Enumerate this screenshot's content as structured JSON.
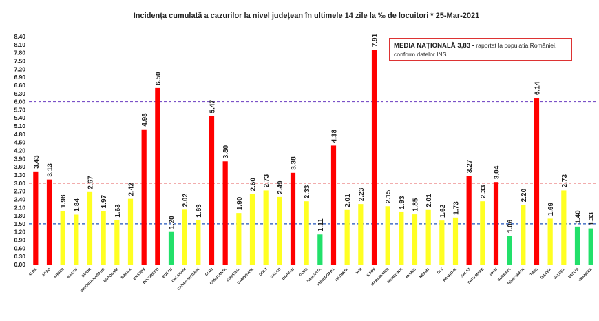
{
  "chart_data": {
    "type": "bar",
    "title": "Incidența cumulată a cazurilor la nivel județean în ultimele 14 zile   la ‰ de locuitori  *  25-Mar-2021",
    "xlabel": "",
    "ylabel": "",
    "ylim": [
      0,
      8.4
    ],
    "yticks": [
      "0.00",
      "0.30",
      "0.60",
      "0.90",
      "1.20",
      "1.50",
      "1.80",
      "2.10",
      "2.40",
      "2.70",
      "3.00",
      "3.30",
      "3.60",
      "3.90",
      "4.20",
      "4.50",
      "4.80",
      "5.10",
      "5.40",
      "5.70",
      "6.00",
      "6.30",
      "6.60",
      "6.90",
      "7.20",
      "7.50",
      "7.80",
      "8.10",
      "8.40"
    ],
    "categories": [
      "ALBA",
      "ARAD",
      "ARGES",
      "BACAU",
      "BIHOR",
      "BISTRITA NASAUD",
      "BOTOSANI",
      "BRAILA",
      "BRASOV",
      "BUCURESTI",
      "BUZAU",
      "CALARASI",
      "CARAS-SEVERIN",
      "CLUJ",
      "CONSTANTA",
      "COVASNA",
      "DAMBOVITA",
      "DOLJ",
      "GALATI",
      "GIURGIU",
      "GORJ",
      "HARGHITA",
      "HUNEDOARA",
      "IALOMITA",
      "IASI",
      "ILFOV",
      "MARAMURES",
      "MEHEDINTI",
      "MURES",
      "NEAMT",
      "OLT",
      "PRAHOVA",
      "SALAJ",
      "SATU MARE",
      "SIBIU",
      "SUCEAVA",
      "TELEORMAN",
      "TIMIS",
      "TULCEA",
      "VALCEA",
      "VASLUI",
      "VRANCEA"
    ],
    "values": [
      3.43,
      3.13,
      1.98,
      1.84,
      2.67,
      1.97,
      1.63,
      2.42,
      4.98,
      6.5,
      1.2,
      2.02,
      1.63,
      5.47,
      3.8,
      1.9,
      2.6,
      2.73,
      2.49,
      3.38,
      2.33,
      1.11,
      4.38,
      2.01,
      2.23,
      7.91,
      2.15,
      1.93,
      1.85,
      2.01,
      1.62,
      1.73,
      3.27,
      2.33,
      3.04,
      1.06,
      2.2,
      6.14,
      1.69,
      2.73,
      1.4,
      1.33
    ],
    "value_labels": [
      "3.43",
      "3.13",
      "1.98",
      "1.84",
      "2.67",
      "1.97",
      "1.63",
      "2.42",
      "4.98",
      "6.50",
      "1.20",
      "2.02",
      "1.63",
      "5.47",
      "3.80",
      "1.90",
      "2.60",
      "2.73",
      "2.49",
      "3.38",
      "2.33",
      "1.11",
      "4.38",
      "2.01",
      "2.23",
      "7.91",
      "2.15",
      "1.93",
      "1.85",
      "2.01",
      "1.62",
      "1.73",
      "3.27",
      "2.33",
      "3.04",
      "1.06",
      "2.20",
      "6.14",
      "1.69",
      "2.73",
      "1.40",
      "1.33"
    ],
    "reference_lines": [
      {
        "value": 6.0,
        "color": "#7b52c8"
      },
      {
        "value": 3.0,
        "color": "#dd2222"
      },
      {
        "value": 1.5,
        "color": "#2255bb"
      }
    ],
    "color_thresholds": [
      {
        "below": 1.5,
        "color": "#22e06a"
      },
      {
        "below": 3.0,
        "color": "#ffff22"
      },
      {
        "below": 99,
        "color": "#ff0000"
      }
    ],
    "grid": false,
    "annotation": {
      "bold": "MEDIA NAȚIONALĂ 3,83 -",
      "text": " raportat la populația României, conform datelor INS"
    }
  }
}
